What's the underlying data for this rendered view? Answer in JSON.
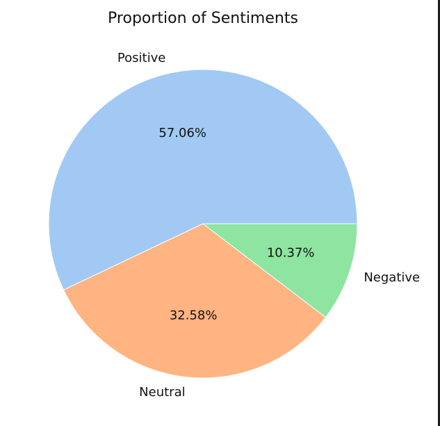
{
  "chart_data": {
    "type": "pie",
    "title": "Proportion of Sentiments",
    "slices": [
      {
        "label": "Positive",
        "value": 57.06,
        "pct_label": "57.06%",
        "color": "#a1c9f4"
      },
      {
        "label": "Neutral",
        "value": 32.58,
        "pct_label": "32.58%",
        "color": "#ffb482"
      },
      {
        "label": "Negative",
        "value": 10.37,
        "pct_label": "10.37%",
        "color": "#8de5a1"
      }
    ],
    "start_angle_deg": 0,
    "direction": "counterclockwise"
  }
}
